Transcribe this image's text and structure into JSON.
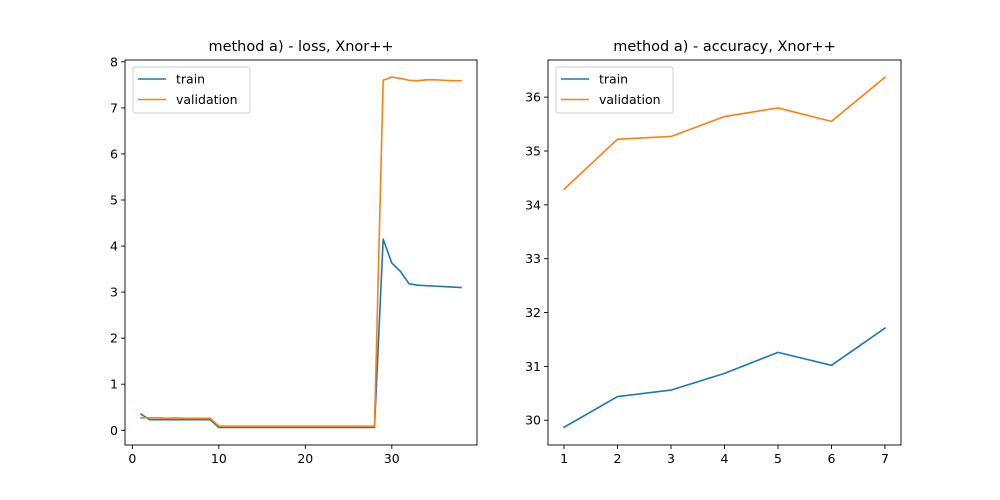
{
  "chart_data": [
    {
      "type": "line",
      "title": "method a) - loss, Xnor++",
      "xlabel": "",
      "ylabel": "",
      "xlim": [
        -0.85,
        39.85
      ],
      "ylim": [
        -0.32,
        8.04
      ],
      "xticks": [
        0,
        10,
        20,
        30
      ],
      "yticks": [
        0,
        1,
        2,
        3,
        4,
        5,
        6,
        7,
        8
      ],
      "legend_position": "upper-left",
      "grid": false,
      "series": [
        {
          "name": "train",
          "color": "#1f77b4",
          "x": [
            1,
            2,
            3,
            4,
            5,
            6,
            7,
            8,
            9,
            10,
            11,
            12,
            13,
            14,
            15,
            16,
            17,
            18,
            19,
            20,
            21,
            22,
            23,
            24,
            25,
            26,
            27,
            28,
            29,
            30,
            31,
            32,
            33,
            34,
            35,
            36,
            37,
            38
          ],
          "y": [
            0.35,
            0.23,
            0.23,
            0.23,
            0.23,
            0.23,
            0.23,
            0.23,
            0.23,
            0.06,
            0.06,
            0.06,
            0.06,
            0.06,
            0.06,
            0.06,
            0.06,
            0.06,
            0.06,
            0.06,
            0.06,
            0.06,
            0.06,
            0.06,
            0.06,
            0.06,
            0.06,
            0.06,
            4.15,
            3.63,
            3.45,
            3.18,
            3.15,
            3.14,
            3.13,
            3.12,
            3.11,
            3.1
          ]
        },
        {
          "name": "validation",
          "color": "#ff7f0e",
          "x": [
            1,
            2,
            3,
            4,
            5,
            6,
            7,
            8,
            9,
            10,
            11,
            12,
            13,
            14,
            15,
            16,
            17,
            18,
            19,
            20,
            21,
            22,
            23,
            24,
            25,
            26,
            27,
            28,
            29,
            30,
            31,
            32,
            33,
            34,
            35,
            36,
            37,
            38
          ],
          "y": [
            0.27,
            0.27,
            0.27,
            0.26,
            0.27,
            0.26,
            0.26,
            0.26,
            0.26,
            0.09,
            0.09,
            0.09,
            0.09,
            0.09,
            0.09,
            0.09,
            0.09,
            0.09,
            0.09,
            0.09,
            0.09,
            0.09,
            0.09,
            0.09,
            0.09,
            0.09,
            0.09,
            0.09,
            7.6,
            7.67,
            7.64,
            7.6,
            7.59,
            7.61,
            7.61,
            7.6,
            7.59,
            7.59
          ]
        }
      ]
    },
    {
      "type": "line",
      "title": "method a) - accuracy, Xnor++",
      "xlabel": "",
      "ylabel": "",
      "xlim": [
        0.7,
        7.3
      ],
      "ylim": [
        29.54,
        36.69
      ],
      "xticks": [
        1,
        2,
        3,
        4,
        5,
        6,
        7
      ],
      "yticks": [
        30,
        31,
        32,
        33,
        34,
        35,
        36
      ],
      "legend_position": "upper-left",
      "grid": false,
      "series": [
        {
          "name": "train",
          "color": "#1f77b4",
          "x": [
            1,
            2,
            3,
            4,
            5,
            6,
            7
          ],
          "y": [
            29.87,
            30.44,
            30.56,
            30.87,
            31.26,
            31.02,
            31.71
          ]
        },
        {
          "name": "validation",
          "color": "#ff7f0e",
          "x": [
            1,
            2,
            3,
            4,
            5,
            6,
            7
          ],
          "y": [
            34.29,
            35.22,
            35.27,
            35.64,
            35.8,
            35.55,
            36.37
          ]
        }
      ]
    }
  ]
}
